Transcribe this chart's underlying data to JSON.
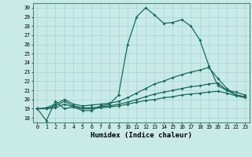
{
  "xlabel": "Humidex (Indice chaleur)",
  "bg_color": "#c8ebe8",
  "grid_color": "#aad4d0",
  "line_color": "#1a6b5a",
  "xlim": [
    -0.5,
    23.5
  ],
  "ylim": [
    17.5,
    30.5
  ],
  "xticks": [
    0,
    1,
    2,
    3,
    4,
    5,
    6,
    7,
    8,
    9,
    10,
    11,
    12,
    13,
    14,
    15,
    16,
    17,
    18,
    19,
    20,
    21,
    22,
    23
  ],
  "yticks": [
    18,
    19,
    20,
    21,
    22,
    23,
    24,
    25,
    26,
    27,
    28,
    29,
    30
  ],
  "curve1_y": [
    19.0,
    17.7,
    19.8,
    19.0,
    19.2,
    18.8,
    18.8,
    19.3,
    19.5,
    20.5,
    26.0,
    29.0,
    30.0,
    29.2,
    28.3,
    28.4,
    28.7,
    28.0,
    26.5,
    23.7,
    21.5,
    21.0,
    20.8,
    20.5
  ],
  "curve2_y": [
    19.0,
    19.1,
    19.5,
    20.0,
    19.5,
    19.3,
    19.4,
    19.5,
    19.6,
    19.8,
    20.2,
    20.7,
    21.2,
    21.7,
    22.0,
    22.4,
    22.7,
    23.0,
    23.2,
    23.5,
    22.3,
    21.2,
    20.5,
    20.3
  ],
  "curve3_y": [
    19.0,
    19.0,
    19.3,
    19.8,
    19.3,
    19.1,
    19.1,
    19.2,
    19.3,
    19.5,
    19.7,
    20.0,
    20.3,
    20.6,
    20.8,
    21.0,
    21.2,
    21.4,
    21.5,
    21.7,
    21.8,
    21.0,
    20.5,
    20.3
  ],
  "curve4_y": [
    19.0,
    19.0,
    19.1,
    19.5,
    19.2,
    19.0,
    19.0,
    19.1,
    19.2,
    19.3,
    19.5,
    19.7,
    19.9,
    20.0,
    20.2,
    20.3,
    20.5,
    20.6,
    20.7,
    20.8,
    20.9,
    20.7,
    20.4,
    20.2
  ]
}
